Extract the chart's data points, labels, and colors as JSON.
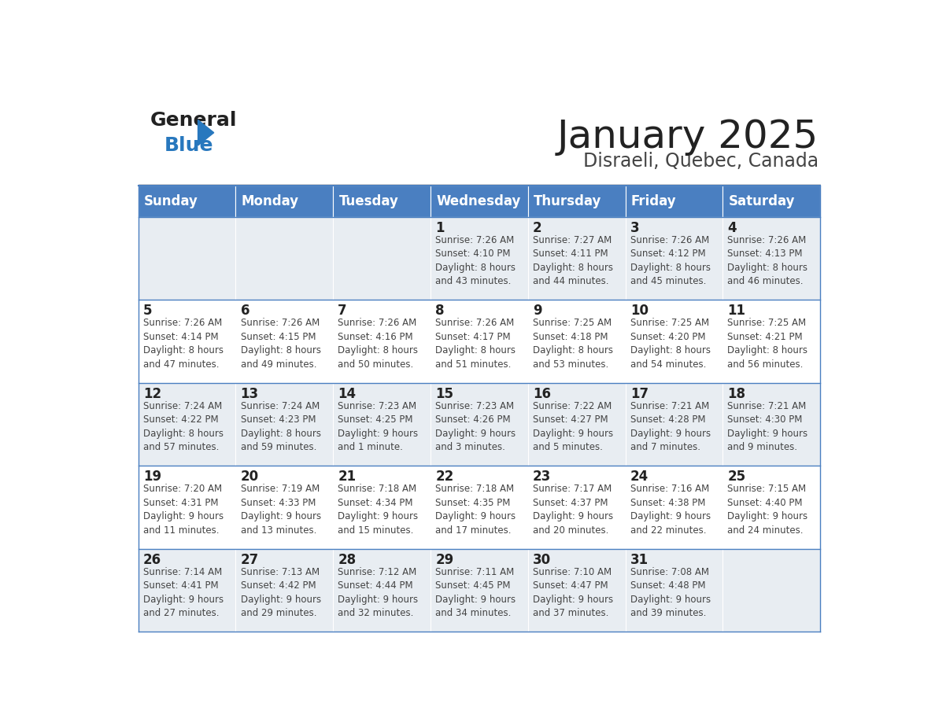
{
  "title": "January 2025",
  "subtitle": "Disraeli, Quebec, Canada",
  "header_bg": "#4a7fc1",
  "header_text_color": "#ffffff",
  "cell_bg_light": "#e8edf2",
  "cell_bg_white": "#ffffff",
  "row_separator_color": "#4a7fc1",
  "col_separator_color": "#ffffff",
  "day_headers": [
    "Sunday",
    "Monday",
    "Tuesday",
    "Wednesday",
    "Thursday",
    "Friday",
    "Saturday"
  ],
  "calendar": [
    [
      "",
      "",
      "",
      "1\nSunrise: 7:26 AM\nSunset: 4:10 PM\nDaylight: 8 hours\nand 43 minutes.",
      "2\nSunrise: 7:27 AM\nSunset: 4:11 PM\nDaylight: 8 hours\nand 44 minutes.",
      "3\nSunrise: 7:26 AM\nSunset: 4:12 PM\nDaylight: 8 hours\nand 45 minutes.",
      "4\nSunrise: 7:26 AM\nSunset: 4:13 PM\nDaylight: 8 hours\nand 46 minutes."
    ],
    [
      "5\nSunrise: 7:26 AM\nSunset: 4:14 PM\nDaylight: 8 hours\nand 47 minutes.",
      "6\nSunrise: 7:26 AM\nSunset: 4:15 PM\nDaylight: 8 hours\nand 49 minutes.",
      "7\nSunrise: 7:26 AM\nSunset: 4:16 PM\nDaylight: 8 hours\nand 50 minutes.",
      "8\nSunrise: 7:26 AM\nSunset: 4:17 PM\nDaylight: 8 hours\nand 51 minutes.",
      "9\nSunrise: 7:25 AM\nSunset: 4:18 PM\nDaylight: 8 hours\nand 53 minutes.",
      "10\nSunrise: 7:25 AM\nSunset: 4:20 PM\nDaylight: 8 hours\nand 54 minutes.",
      "11\nSunrise: 7:25 AM\nSunset: 4:21 PM\nDaylight: 8 hours\nand 56 minutes."
    ],
    [
      "12\nSunrise: 7:24 AM\nSunset: 4:22 PM\nDaylight: 8 hours\nand 57 minutes.",
      "13\nSunrise: 7:24 AM\nSunset: 4:23 PM\nDaylight: 8 hours\nand 59 minutes.",
      "14\nSunrise: 7:23 AM\nSunset: 4:25 PM\nDaylight: 9 hours\nand 1 minute.",
      "15\nSunrise: 7:23 AM\nSunset: 4:26 PM\nDaylight: 9 hours\nand 3 minutes.",
      "16\nSunrise: 7:22 AM\nSunset: 4:27 PM\nDaylight: 9 hours\nand 5 minutes.",
      "17\nSunrise: 7:21 AM\nSunset: 4:28 PM\nDaylight: 9 hours\nand 7 minutes.",
      "18\nSunrise: 7:21 AM\nSunset: 4:30 PM\nDaylight: 9 hours\nand 9 minutes."
    ],
    [
      "19\nSunrise: 7:20 AM\nSunset: 4:31 PM\nDaylight: 9 hours\nand 11 minutes.",
      "20\nSunrise: 7:19 AM\nSunset: 4:33 PM\nDaylight: 9 hours\nand 13 minutes.",
      "21\nSunrise: 7:18 AM\nSunset: 4:34 PM\nDaylight: 9 hours\nand 15 minutes.",
      "22\nSunrise: 7:18 AM\nSunset: 4:35 PM\nDaylight: 9 hours\nand 17 minutes.",
      "23\nSunrise: 7:17 AM\nSunset: 4:37 PM\nDaylight: 9 hours\nand 20 minutes.",
      "24\nSunrise: 7:16 AM\nSunset: 4:38 PM\nDaylight: 9 hours\nand 22 minutes.",
      "25\nSunrise: 7:15 AM\nSunset: 4:40 PM\nDaylight: 9 hours\nand 24 minutes."
    ],
    [
      "26\nSunrise: 7:14 AM\nSunset: 4:41 PM\nDaylight: 9 hours\nand 27 minutes.",
      "27\nSunrise: 7:13 AM\nSunset: 4:42 PM\nDaylight: 9 hours\nand 29 minutes.",
      "28\nSunrise: 7:12 AM\nSunset: 4:44 PM\nDaylight: 9 hours\nand 32 minutes.",
      "29\nSunrise: 7:11 AM\nSunset: 4:45 PM\nDaylight: 9 hours\nand 34 minutes.",
      "30\nSunrise: 7:10 AM\nSunset: 4:47 PM\nDaylight: 9 hours\nand 37 minutes.",
      "31\nSunrise: 7:08 AM\nSunset: 4:48 PM\nDaylight: 9 hours\nand 39 minutes.",
      ""
    ]
  ],
  "logo_general_color": "#222222",
  "logo_blue_color": "#2878be",
  "logo_triangle_color": "#2878be",
  "title_color": "#222222",
  "subtitle_color": "#444444",
  "day_number_color": "#222222",
  "cell_text_color": "#444444",
  "title_fontsize": 36,
  "subtitle_fontsize": 17,
  "header_fontsize": 12,
  "day_num_fontsize": 12,
  "cell_text_fontsize": 8.5
}
